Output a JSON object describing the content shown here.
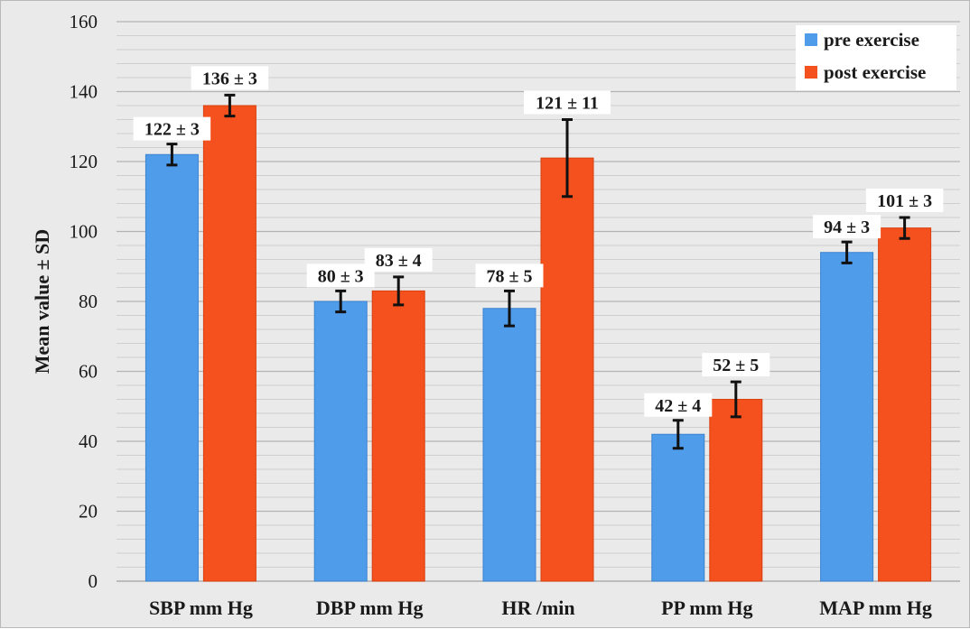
{
  "chart_data": {
    "type": "bar",
    "title": "",
    "xlabel": "",
    "ylabel": "Mean value ± SD",
    "ylim": [
      0,
      160
    ],
    "yticks": [
      0,
      20,
      40,
      60,
      80,
      100,
      120,
      140,
      160
    ],
    "grid": true,
    "legend_position": "top-right",
    "categories": [
      "SBP mm Hg",
      "DBP mm Hg",
      "HR /min",
      "PP mm Hg",
      "MAP mm Hg"
    ],
    "series": [
      {
        "name": "pre exercise",
        "color": "#4f9ceb",
        "values": [
          122,
          80,
          78,
          42,
          94
        ],
        "errors": [
          3,
          3,
          5,
          4,
          3
        ],
        "labels": [
          "122 ± 3",
          "80 ± 3",
          "78 ± 5",
          "42 ± 4",
          "94 ± 3"
        ]
      },
      {
        "name": "post exercise",
        "color": "#f4511e",
        "values": [
          136,
          83,
          121,
          52,
          101
        ],
        "errors": [
          3,
          4,
          11,
          5,
          3
        ],
        "labels": [
          "136 ± 3",
          "83 ± 4",
          "121 ± 11",
          "52 ± 5",
          "101 ± 3"
        ]
      }
    ]
  }
}
